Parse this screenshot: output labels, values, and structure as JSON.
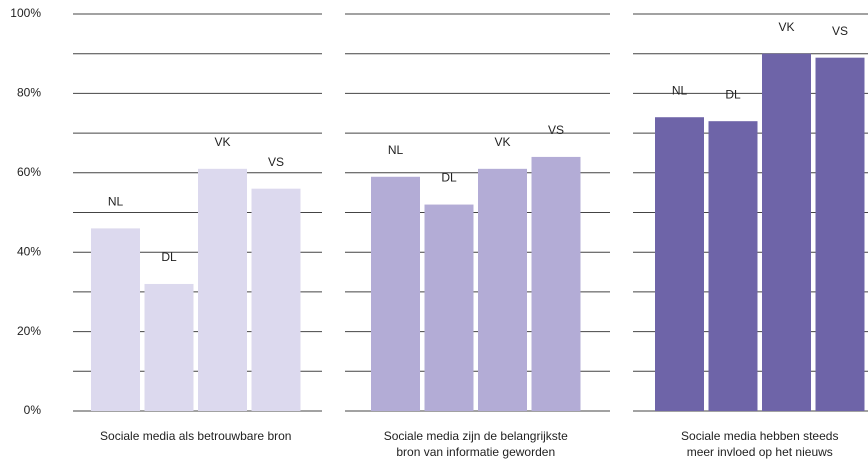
{
  "chart_data": [
    {
      "type": "bar",
      "categories": [
        "NL",
        "DL",
        "VK",
        "VS"
      ],
      "values": [
        46,
        32,
        61,
        56
      ],
      "color": "#dcd9ee",
      "xlabel": [
        "Sociale media als betrouwbare bron"
      ],
      "ylim": [
        0,
        100
      ],
      "yticks": [
        {
          "value": 0,
          "label": "0%"
        },
        {
          "value": 20,
          "label": "20%"
        },
        {
          "value": 40,
          "label": "40%"
        },
        {
          "value": 60,
          "label": "60%"
        },
        {
          "value": 80,
          "label": "80%"
        },
        {
          "value": 100,
          "label": "100%"
        }
      ],
      "ygrid": [
        0,
        10,
        20,
        30,
        40,
        50,
        60,
        70,
        80,
        90,
        100
      ]
    },
    {
      "type": "bar",
      "categories": [
        "NL",
        "DL",
        "VK",
        "VS"
      ],
      "values": [
        59,
        52,
        61,
        64
      ],
      "color": "#b3acd6",
      "xlabel": [
        "Sociale media zijn de belangrijkste",
        "bron van informatie geworden"
      ],
      "ylim": [
        0,
        100
      ],
      "ygrid": [
        0,
        10,
        20,
        30,
        40,
        50,
        60,
        70,
        80,
        90,
        100
      ]
    },
    {
      "type": "bar",
      "categories": [
        "NL",
        "DL",
        "VK",
        "VS"
      ],
      "values": [
        74,
        73,
        90,
        89
      ],
      "color": "#6e64a8",
      "xlabel": [
        "Sociale media hebben steeds",
        "meer invloed op het nieuws"
      ],
      "ylim": [
        0,
        100
      ],
      "ygrid": [
        0,
        10,
        20,
        30,
        40,
        50,
        60,
        70,
        80,
        90,
        100
      ]
    }
  ]
}
